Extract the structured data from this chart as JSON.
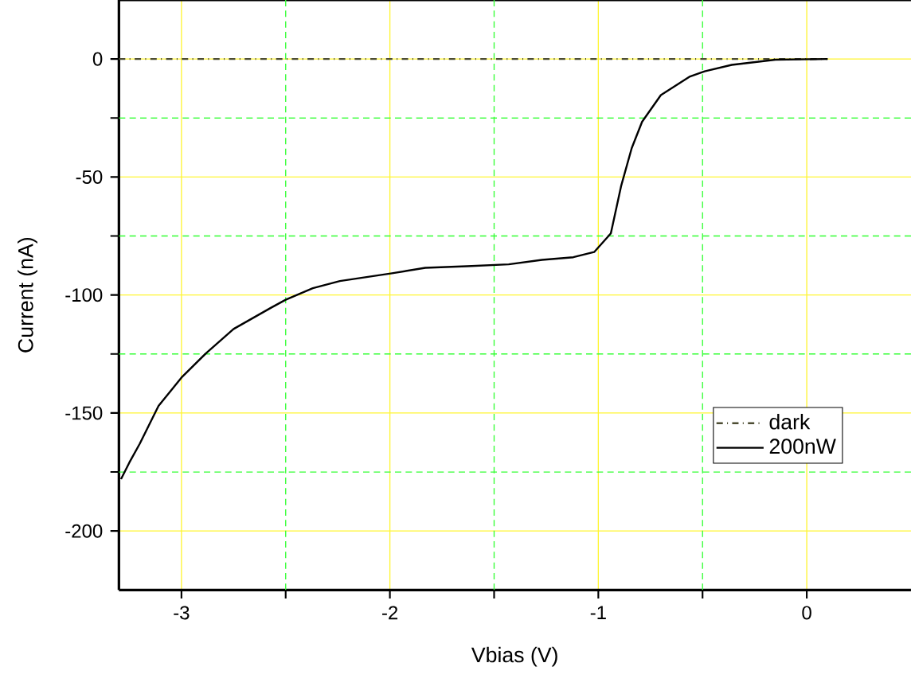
{
  "chart_data": {
    "type": "line",
    "xlabel": "Vbias (V)",
    "ylabel": "Current (nA)",
    "xlim": [
      -3.3,
      0.5
    ],
    "ylim": [
      -225,
      25
    ],
    "xticks": [
      -3,
      {
        "value": -2.5,
        "label": null
      },
      -2,
      {
        "value": -1.5,
        "label": null
      },
      -1,
      {
        "value": -0.5,
        "label": null
      },
      0
    ],
    "yticks": [
      -200,
      {
        "value": -175,
        "label": null
      },
      -150,
      {
        "value": -125,
        "label": null
      },
      -100,
      {
        "value": -75,
        "label": null
      },
      -50,
      {
        "value": -25,
        "label": null
      },
      0
    ],
    "grid": true,
    "legend": "bottom right",
    "marker": "none",
    "series": [
      {
        "name": "dark",
        "color": "#4d4d33",
        "line_style": "dashdot",
        "x": [
          -3.3,
          0.1
        ],
        "values": [
          0,
          0
        ]
      },
      {
        "name": "200nW",
        "color": "#000000",
        "line_style": "solid",
        "x": [
          -3.29,
          -3.25,
          -3.2,
          -3.11,
          -3.0,
          -2.88,
          -2.75,
          -2.57,
          -2.5,
          -2.37,
          -2.24,
          -1.99,
          -1.83,
          -1.63,
          -1.43,
          -1.27,
          -1.12,
          -1.02,
          -0.94,
          -0.89,
          -0.84,
          -0.79,
          -0.7,
          -0.56,
          -0.49,
          -0.36,
          -0.15,
          0.1
        ],
        "values": [
          -178,
          -171,
          -163,
          -147,
          -135,
          -124.5,
          -114.4,
          -105.4,
          -102,
          -97.1,
          -94.1,
          -90.8,
          -88.5,
          -87.8,
          -87,
          -85.1,
          -84,
          -81.8,
          -73.9,
          -53.6,
          -37.8,
          -26.6,
          -15.3,
          -7.4,
          -5.2,
          -2.5,
          -0.3,
          0
        ]
      }
    ]
  }
}
